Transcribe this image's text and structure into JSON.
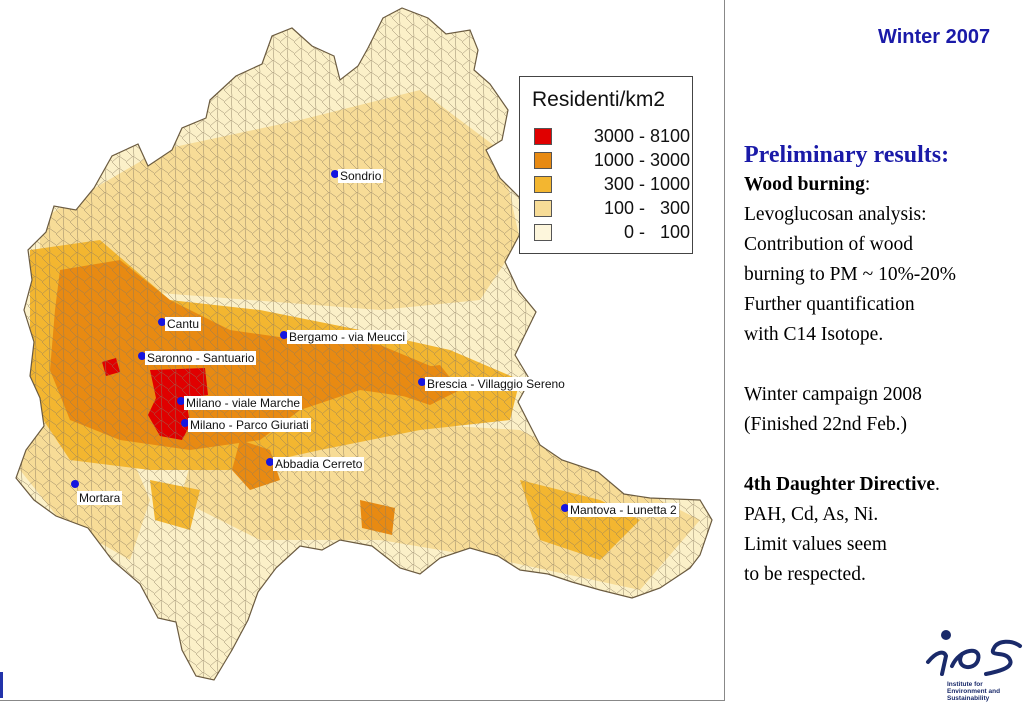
{
  "header": {
    "title": "Winter 2007"
  },
  "map": {
    "legend": {
      "title": "Residenti/km2",
      "classes": [
        {
          "label": "3000 - 8100",
          "color": "#e00000"
        },
        {
          "label": "1000 - 3000",
          "color": "#e88a12"
        },
        {
          "label": "300 - 1000",
          "color": "#f3b630"
        },
        {
          "label": "100 -   300",
          "color": "#f7dc97"
        },
        {
          "label": "0 -   100",
          "color": "#fdf6dc"
        }
      ]
    },
    "stations": [
      "Sondrio",
      "Cantu",
      "Bergamo - via Meucci",
      "Saronno - Santuario",
      "Brescia - Villaggio Sereno",
      "Milano - viale Marche",
      "Milano - Parco Giuriati",
      "Abbadia Cerreto",
      "Mortara",
      "Mantova - Lunetta 2"
    ]
  },
  "panel": {
    "heading": "Preliminary results:",
    "wood_burning_label": "Wood burning",
    "wood_burning_colon": ":",
    "lines1": [
      "Levoglucosan analysis:",
      "Contribution of wood",
      "burning to PM ~ 10%-20%",
      "Further quantification",
      "with C14 Isotope."
    ],
    "lines2": [
      "Winter campaign 2008",
      "(Finished 22nd Feb.)"
    ],
    "directive_label": "4th Daughter Directive",
    "directive_dot": ".",
    "lines3": [
      "PAH, Cd, As, Ni.",
      "Limit values seem",
      "to be respected."
    ]
  },
  "logo": {
    "mark": "ies",
    "caption": [
      "Institute for",
      "Environment and",
      "Sustainability"
    ],
    "color": "#1a2a6a"
  }
}
